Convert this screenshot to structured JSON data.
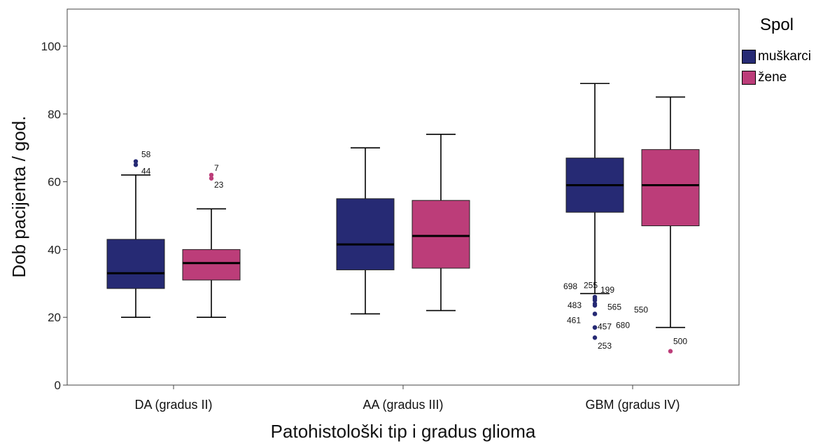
{
  "chart_data": {
    "type": "boxplot",
    "xlabel": "Patohistološki tip i gradus glioma",
    "ylabel": "Dob pacijenta / god.",
    "ylim": [
      0,
      110
    ],
    "yticks": [
      0,
      20,
      40,
      60,
      80,
      100
    ],
    "categories": [
      "DA (gradus II)",
      "AA (gradus III)",
      "GBM (gradus IV)"
    ],
    "legend": {
      "title": "Spol",
      "position": "top-right"
    },
    "series": [
      {
        "name": "muškarci",
        "color": "#262a74",
        "boxes": [
          {
            "category": "DA (gradus II)",
            "min": 20,
            "q1": 28.5,
            "median": 33,
            "q3": 43,
            "max": 62,
            "outliers": [
              {
                "value": 66,
                "label": "58"
              },
              {
                "value": 65,
                "label": "44"
              }
            ]
          },
          {
            "category": "AA (gradus III)",
            "min": 21,
            "q1": 34,
            "median": 41.5,
            "q3": 55,
            "max": 70,
            "outliers": []
          },
          {
            "category": "GBM (gradus IV)",
            "min": 27,
            "q1": 51,
            "median": 59,
            "q3": 67,
            "max": 89,
            "outliers": [
              {
                "value": 26,
                "label": "698"
              },
              {
                "value": 25.5,
                "label": "255"
              },
              {
                "value": 25,
                "label": "199"
              },
              {
                "value": 24,
                "label": "483"
              },
              {
                "value": 23.5,
                "label": "565"
              },
              {
                "value": 21,
                "label": "461"
              },
              {
                "value": 21,
                "label": "550"
              },
              {
                "value": 17,
                "label": "680"
              },
              {
                "value": 17,
                "label": "457"
              },
              {
                "value": 14,
                "label": "253"
              }
            ]
          }
        ]
      },
      {
        "name": "žene",
        "color": "#bc3d79",
        "boxes": [
          {
            "category": "DA (gradus II)",
            "min": 20,
            "q1": 31,
            "median": 36,
            "q3": 40,
            "max": 52,
            "outliers": [
              {
                "value": 62,
                "label": "7"
              },
              {
                "value": 61,
                "label": "23"
              }
            ]
          },
          {
            "category": "AA (gradus III)",
            "min": 22,
            "q1": 34.5,
            "median": 44,
            "q3": 54.5,
            "max": 74,
            "outliers": []
          },
          {
            "category": "GBM (gradus IV)",
            "min": 17,
            "q1": 47,
            "median": 59,
            "q3": 69.5,
            "max": 85,
            "outliers": [
              {
                "value": 10,
                "label": "500"
              }
            ]
          }
        ]
      }
    ]
  }
}
